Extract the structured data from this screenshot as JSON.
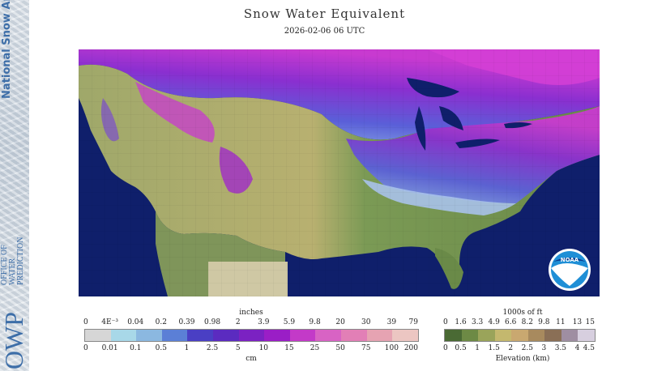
{
  "sidebar": {
    "brand_title": "National Snow Analysis",
    "org_sub": "OFFICE OF WATER PREDICTION",
    "org_abbr": "OWP"
  },
  "header": {
    "title": "Snow Water Equivalent",
    "timestamp": "2026-02-06 06 UTC"
  },
  "map": {
    "logo_text": "NOAA",
    "colors": {
      "ocean": "#0f1f6b",
      "masked_area": "#cfc8a4",
      "outside": "#9a97a0"
    }
  },
  "legend_swe": {
    "unit_top": "inches",
    "unit_bottom": "cm",
    "labels_top": [
      "0",
      "4E⁻³",
      "0.04",
      "0.2",
      "0.39",
      "0.98",
      "2",
      "3.9",
      "5.9",
      "9.8",
      "20",
      "30",
      "39",
      "79"
    ],
    "labels_bottom": [
      "0",
      "0.01",
      "0.1",
      "0.5",
      "1",
      "2.5",
      "5",
      "10",
      "15",
      "25",
      "50",
      "75",
      "100",
      "200"
    ],
    "colors": [
      "#d6d6d6",
      "#a8d8e8",
      "#8bb8e0",
      "#5b7fd6",
      "#4a3fc4",
      "#5b2bc0",
      "#7b22c2",
      "#9a1ec6",
      "#c33ac8",
      "#d863c4",
      "#e27fb6",
      "#e6a3b2",
      "#ecc6c2"
    ]
  },
  "legend_elev": {
    "unit_top": "1000s of ft",
    "unit_bottom": "Elevation (km)",
    "labels_top": [
      "0",
      "1.6",
      "3.3",
      "4.9",
      "6.6",
      "8.2",
      "9.8",
      "11",
      "13",
      "15"
    ],
    "labels_bottom": [
      "0",
      "0.5",
      "1",
      "1.5",
      "2",
      "2.5",
      "3",
      "3.5",
      "4",
      "4.5"
    ],
    "colors": [
      "#4a6a34",
      "#6d8a45",
      "#9aa45a",
      "#c4b86e",
      "#c9a870",
      "#a88a5e",
      "#8a6f56",
      "#9f8ea2",
      "#d7cfdf"
    ]
  }
}
